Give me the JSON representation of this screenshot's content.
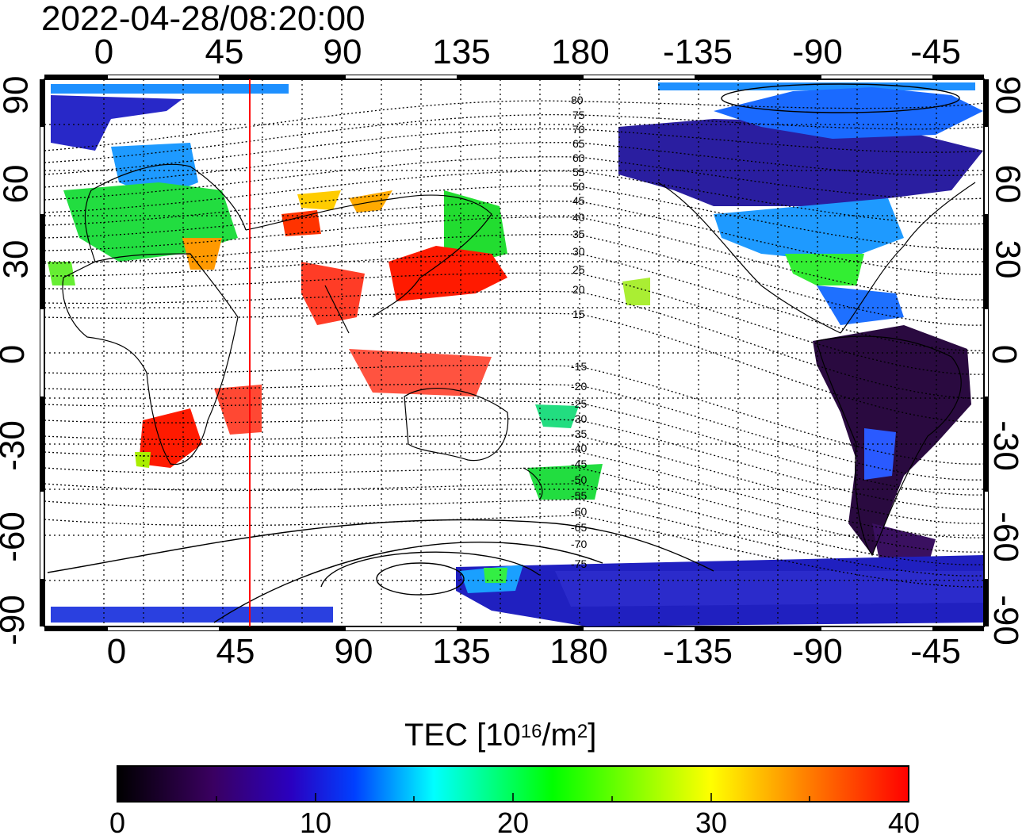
{
  "title": "2022-04-28/08:20:00",
  "longitude_labels": [
    "0",
    "45",
    "90",
    "135",
    "180",
    "-135",
    "-90",
    "-45"
  ],
  "latitude_labels": [
    "90",
    "60",
    "30",
    "0",
    "-30",
    "-60",
    "-90"
  ],
  "contour_labels": [
    "80",
    "75",
    "70",
    "65",
    "60",
    "55",
    "50",
    "45",
    "40",
    "35",
    "30",
    "25",
    "20",
    "15",
    "-15",
    "-20",
    "-25",
    "-30",
    "-35",
    "-40",
    "-45",
    "-50",
    "-55",
    "-60",
    "-65",
    "-70",
    "-75"
  ],
  "colorbar": {
    "title_prefix": "TEC  [10",
    "title_exp1": "16",
    "title_mid": "/m",
    "title_exp2": "2",
    "title_suffix": "]",
    "ticks": [
      "0",
      "10",
      "20",
      "30",
      "40"
    ],
    "min": 0,
    "max": 40,
    "colors": [
      "#000000",
      "#3a0060",
      "#2a00c0",
      "#0040ff",
      "#00ffff",
      "#00ff00",
      "#ffff00",
      "#ff8000",
      "#ff0000"
    ]
  },
  "terminator_longitude": 52
}
